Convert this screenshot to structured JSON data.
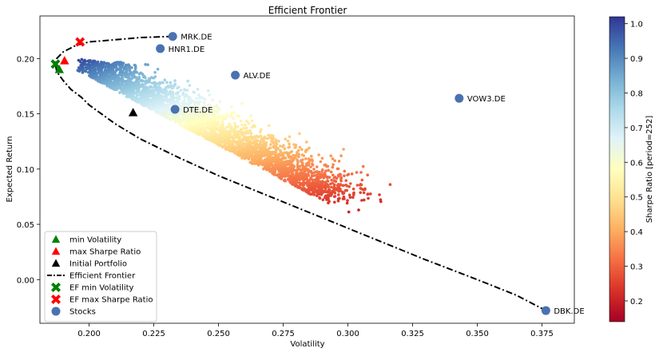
{
  "chart_data": {
    "type": "scatter",
    "title": "Efficient Frontier",
    "xlabel": "Volatility",
    "ylabel": "Expected Return",
    "xlim": [
      0.181,
      0.3875
    ],
    "ylim": [
      -0.0395,
      0.2385
    ],
    "x_ticks": [
      0.2,
      0.225,
      0.25,
      0.275,
      0.3,
      0.325,
      0.35,
      0.375
    ],
    "x_tick_labels": [
      "0.200",
      "0.225",
      "0.250",
      "0.275",
      "0.300",
      "0.325",
      "0.350",
      "0.375"
    ],
    "y_ticks": [
      0.0,
      0.05,
      0.1,
      0.15,
      0.2
    ],
    "y_tick_labels": [
      "0.00",
      "0.05",
      "0.10",
      "0.15",
      "0.20"
    ],
    "grid": false,
    "legend_position": "lower-left",
    "colorbar": {
      "label": "Sharpe Ratio [period=252]",
      "range": [
        0.14,
        1.02
      ],
      "ticks": [
        0.2,
        0.3,
        0.4,
        0.5,
        0.6,
        0.7,
        0.8,
        0.9,
        1.0
      ],
      "tick_labels": [
        "0.2",
        "0.3",
        "0.4",
        "0.5",
        "0.6",
        "0.7",
        "0.8",
        "0.9",
        "1.0"
      ],
      "colormap": "RdYlBu"
    },
    "portfolio_cloud": {
      "description_points": [
        {
          "x": 0.19,
          "y": 0.185,
          "sharpe": 0.95
        },
        {
          "x": 0.2,
          "y": 0.2,
          "sharpe": 1.0
        },
        {
          "x": 0.205,
          "y": 0.17,
          "sharpe": 0.82
        },
        {
          "x": 0.215,
          "y": 0.16,
          "sharpe": 0.75
        },
        {
          "x": 0.225,
          "y": 0.175,
          "sharpe": 0.8
        },
        {
          "x": 0.23,
          "y": 0.14,
          "sharpe": 0.6
        },
        {
          "x": 0.24,
          "y": 0.12,
          "sharpe": 0.5
        },
        {
          "x": 0.25,
          "y": 0.11,
          "sharpe": 0.42
        },
        {
          "x": 0.26,
          "y": 0.1,
          "sharpe": 0.38
        },
        {
          "x": 0.27,
          "y": 0.09,
          "sharpe": 0.32
        },
        {
          "x": 0.283,
          "y": 0.07,
          "sharpe": 0.24
        },
        {
          "x": 0.293,
          "y": 0.047,
          "sharpe": 0.16
        }
      ]
    },
    "efficient_frontier": {
      "name": "Efficient Frontier",
      "x": [
        0.2323,
        0.22,
        0.21,
        0.2,
        0.195,
        0.19,
        0.1875,
        0.187,
        0.1875,
        0.19,
        0.193,
        0.197,
        0.2,
        0.21,
        0.22,
        0.235,
        0.25,
        0.27,
        0.29,
        0.31,
        0.33,
        0.35,
        0.365,
        0.3765
      ],
      "y": [
        0.22,
        0.219,
        0.217,
        0.215,
        0.212,
        0.206,
        0.2,
        0.195,
        0.188,
        0.18,
        0.172,
        0.165,
        0.158,
        0.141,
        0.127,
        0.11,
        0.094,
        0.075,
        0.056,
        0.037,
        0.018,
        0.0,
        -0.014,
        -0.028
      ]
    },
    "markers": [
      {
        "name": "min Volatility",
        "marker": "triangle",
        "color": "#008000",
        "x": 0.1885,
        "y": 0.19
      },
      {
        "name": "max Sharpe Ratio",
        "marker": "triangle",
        "color": "#ff0000",
        "x": 0.1905,
        "y": 0.198
      },
      {
        "name": "Initial Portfolio",
        "marker": "triangle",
        "color": "#000000",
        "x": 0.217,
        "y": 0.151
      },
      {
        "name": "EF min Volatility",
        "marker": "x",
        "color": "#008000",
        "x": 0.187,
        "y": 0.195
      },
      {
        "name": "EF max Sharpe Ratio",
        "marker": "x",
        "color": "#ff0000",
        "x": 0.1965,
        "y": 0.215
      }
    ],
    "stocks": {
      "name": "Stocks",
      "color": "#4a72b0",
      "points": [
        {
          "label": "MRK.DE",
          "x": 0.2323,
          "y": 0.22
        },
        {
          "label": "HNR1.DE",
          "x": 0.2275,
          "y": 0.209
        },
        {
          "label": "ALV.DE",
          "x": 0.2565,
          "y": 0.185
        },
        {
          "label": "VOW3.DE",
          "x": 0.343,
          "y": 0.164
        },
        {
          "label": "DTE.DE",
          "x": 0.2332,
          "y": 0.154
        },
        {
          "label": "DBK.DE",
          "x": 0.3765,
          "y": -0.028
        }
      ]
    },
    "legend": [
      {
        "label": "min Volatility",
        "marker": "triangle",
        "color": "#008000"
      },
      {
        "label": "max Sharpe Ratio",
        "marker": "triangle",
        "color": "#ff0000"
      },
      {
        "label": "Initial Portfolio",
        "marker": "triangle",
        "color": "#000000"
      },
      {
        "label": "Efficient Frontier",
        "marker": "dashdot-line",
        "color": "#000000"
      },
      {
        "label": "EF min Volatility",
        "marker": "x",
        "color": "#008000"
      },
      {
        "label": "EF max Sharpe Ratio",
        "marker": "x",
        "color": "#ff0000"
      },
      {
        "label": "Stocks",
        "marker": "circle",
        "color": "#4a72b0"
      }
    ]
  }
}
